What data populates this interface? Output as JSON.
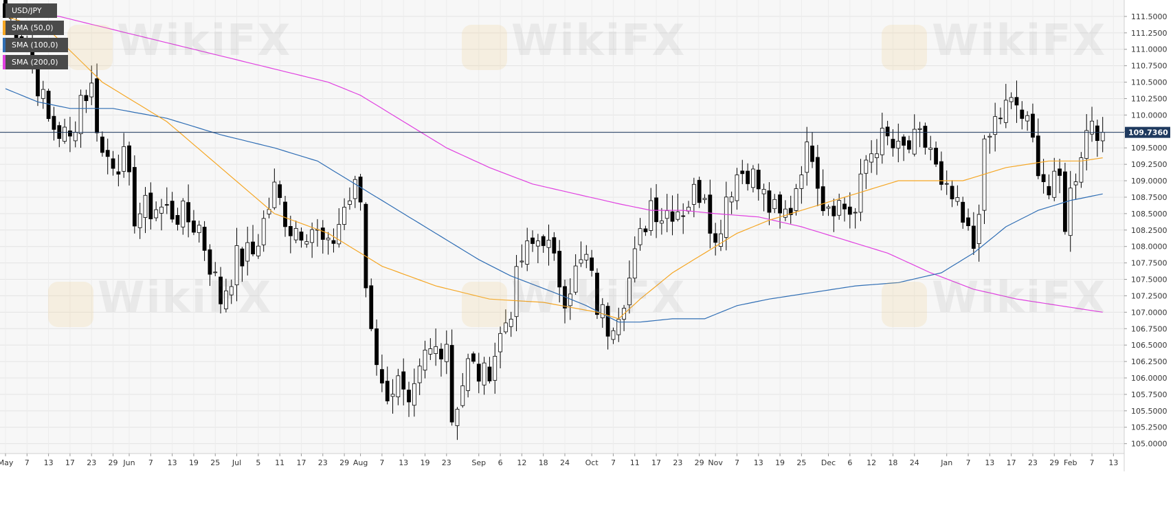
{
  "chart_data": {
    "type": "candlestick",
    "symbol": "USD/JPY",
    "current_price": 109.736,
    "current_price_label": "109.7360",
    "ylim": [
      104.85,
      111.75
    ],
    "y_ticks": [
      "105.0000",
      "105.2500",
      "105.5000",
      "105.7500",
      "106.0000",
      "106.2500",
      "106.5000",
      "106.7500",
      "107.0000",
      "107.2500",
      "107.5000",
      "107.7500",
      "108.0000",
      "108.2500",
      "108.5000",
      "108.7500",
      "109.0000",
      "109.2500",
      "109.5000",
      "109.7500",
      "110.0000",
      "110.2500",
      "110.5000",
      "110.7500",
      "111.0000",
      "111.2500",
      "111.5000"
    ],
    "x_ticks": [
      {
        "i": 0,
        "label": "May"
      },
      {
        "i": 4,
        "label": "7"
      },
      {
        "i": 8,
        "label": "13"
      },
      {
        "i": 12,
        "label": "17"
      },
      {
        "i": 16,
        "label": "23"
      },
      {
        "i": 20,
        "label": "29"
      },
      {
        "i": 23,
        "label": "Jun"
      },
      {
        "i": 27,
        "label": "7"
      },
      {
        "i": 31,
        "label": "13"
      },
      {
        "i": 35,
        "label": "19"
      },
      {
        "i": 39,
        "label": "25"
      },
      {
        "i": 43,
        "label": "Jul"
      },
      {
        "i": 47,
        "label": "5"
      },
      {
        "i": 51,
        "label": "11"
      },
      {
        "i": 55,
        "label": "17"
      },
      {
        "i": 59,
        "label": "23"
      },
      {
        "i": 63,
        "label": "29"
      },
      {
        "i": 66,
        "label": "Aug"
      },
      {
        "i": 70,
        "label": "7"
      },
      {
        "i": 74,
        "label": "13"
      },
      {
        "i": 78,
        "label": "19"
      },
      {
        "i": 82,
        "label": "23"
      },
      {
        "i": 88,
        "label": "Sep"
      },
      {
        "i": 92,
        "label": "6"
      },
      {
        "i": 96,
        "label": "12"
      },
      {
        "i": 100,
        "label": "18"
      },
      {
        "i": 104,
        "label": "24"
      },
      {
        "i": 109,
        "label": "Oct"
      },
      {
        "i": 113,
        "label": "7"
      },
      {
        "i": 117,
        "label": "11"
      },
      {
        "i": 121,
        "label": "17"
      },
      {
        "i": 125,
        "label": "23"
      },
      {
        "i": 129,
        "label": "29"
      },
      {
        "i": 132,
        "label": "Nov"
      },
      {
        "i": 136,
        "label": "7"
      },
      {
        "i": 140,
        "label": "13"
      },
      {
        "i": 144,
        "label": "19"
      },
      {
        "i": 148,
        "label": "25"
      },
      {
        "i": 153,
        "label": "Dec"
      },
      {
        "i": 157,
        "label": "6"
      },
      {
        "i": 161,
        "label": "12"
      },
      {
        "i": 165,
        "label": "18"
      },
      {
        "i": 169,
        "label": "24"
      },
      {
        "i": 175,
        "label": "Jan"
      },
      {
        "i": 179,
        "label": "7"
      },
      {
        "i": 183,
        "label": "13"
      },
      {
        "i": 187,
        "label": "17"
      },
      {
        "i": 191,
        "label": "23"
      },
      {
        "i": 195,
        "label": "29"
      },
      {
        "i": 198,
        "label": "Feb"
      },
      {
        "i": 202,
        "label": "7"
      },
      {
        "i": 206,
        "label": "13"
      }
    ],
    "series_meta": [
      {
        "name": "USD/JPY",
        "color": "#000000"
      },
      {
        "name": "SMA (50,0)",
        "color": "#f5a623"
      },
      {
        "name": "SMA (100,0)",
        "color": "#2e6db4"
      },
      {
        "name": "SMA (200,0)",
        "color": "#e040e0"
      }
    ],
    "candles_close_anchors": [
      [
        0,
        111.55
      ],
      [
        4,
        111.1
      ],
      [
        8,
        109.9
      ],
      [
        12,
        109.6
      ],
      [
        14,
        110.3
      ],
      [
        16,
        110.4
      ],
      [
        18,
        109.4
      ],
      [
        22,
        109.3
      ],
      [
        24,
        108.5
      ],
      [
        28,
        108.6
      ],
      [
        32,
        108.5
      ],
      [
        36,
        108.3
      ],
      [
        40,
        107.2
      ],
      [
        43,
        107.8
      ],
      [
        46,
        107.9
      ],
      [
        50,
        108.85
      ],
      [
        53,
        108.3
      ],
      [
        57,
        108.3
      ],
      [
        60,
        107.9
      ],
      [
        63,
        108.6
      ],
      [
        65,
        108.85
      ],
      [
        66,
        108.7
      ],
      [
        67,
        107.4
      ],
      [
        70,
        105.8
      ],
      [
        73,
        105.9
      ],
      [
        75,
        105.4
      ],
      [
        78,
        106.3
      ],
      [
        82,
        106.6
      ],
      [
        83,
        105.4
      ],
      [
        86,
        106.2
      ],
      [
        89,
        106.0
      ],
      [
        91,
        106.4
      ],
      [
        94,
        107.1
      ],
      [
        96,
        107.8
      ],
      [
        98,
        108.0
      ],
      [
        100,
        108.2
      ],
      [
        102,
        107.7
      ],
      [
        104,
        107.3
      ],
      [
        106,
        107.6
      ],
      [
        108,
        107.8
      ],
      [
        110,
        107.1
      ],
      [
        112,
        106.8
      ],
      [
        114,
        107.1
      ],
      [
        116,
        107.5
      ],
      [
        118,
        108.1
      ],
      [
        120,
        108.7
      ],
      [
        122,
        108.5
      ],
      [
        124,
        108.6
      ],
      [
        126,
        108.6
      ],
      [
        128,
        108.8
      ],
      [
        130,
        108.9
      ],
      [
        132,
        108.0
      ],
      [
        134,
        108.8
      ],
      [
        136,
        109.1
      ],
      [
        138,
        109.2
      ],
      [
        140,
        108.9
      ],
      [
        142,
        108.6
      ],
      [
        144,
        108.4
      ],
      [
        146,
        108.6
      ],
      [
        148,
        109.3
      ],
      [
        150,
        109.5
      ],
      [
        152,
        108.7
      ],
      [
        154,
        108.7
      ],
      [
        156,
        108.6
      ],
      [
        158,
        108.5
      ],
      [
        160,
        109.3
      ],
      [
        162,
        109.6
      ],
      [
        164,
        109.6
      ],
      [
        166,
        109.4
      ],
      [
        168,
        109.5
      ],
      [
        170,
        109.6
      ],
      [
        172,
        109.5
      ],
      [
        174,
        108.8
      ],
      [
        176,
        108.7
      ],
      [
        178,
        108.3
      ],
      [
        180,
        108.0
      ],
      [
        182,
        109.4
      ],
      [
        184,
        109.9
      ],
      [
        186,
        110.1
      ],
      [
        188,
        110.15
      ],
      [
        190,
        109.8
      ],
      [
        192,
        109.3
      ],
      [
        194,
        108.8
      ],
      [
        196,
        109.0
      ],
      [
        197,
        108.4
      ],
      [
        198,
        108.8
      ],
      [
        200,
        109.5
      ],
      [
        202,
        110.0
      ],
      [
        203,
        109.85
      ],
      [
        204,
        109.736
      ]
    ],
    "sma_50": [
      [
        0,
        111.5
      ],
      [
        8,
        111.3
      ],
      [
        18,
        110.5
      ],
      [
        30,
        109.9
      ],
      [
        40,
        109.2
      ],
      [
        50,
        108.5
      ],
      [
        60,
        108.2
      ],
      [
        70,
        107.7
      ],
      [
        80,
        107.4
      ],
      [
        90,
        107.2
      ],
      [
        100,
        107.15
      ],
      [
        110,
        107.0
      ],
      [
        114,
        106.9
      ],
      [
        118,
        107.2
      ],
      [
        124,
        107.6
      ],
      [
        130,
        107.9
      ],
      [
        136,
        108.2
      ],
      [
        142,
        108.4
      ],
      [
        150,
        108.6
      ],
      [
        158,
        108.8
      ],
      [
        166,
        109.0
      ],
      [
        174,
        109.0
      ],
      [
        178,
        109.0
      ],
      [
        186,
        109.2
      ],
      [
        194,
        109.3
      ],
      [
        200,
        109.3
      ],
      [
        204,
        109.35
      ]
    ],
    "sma_100": [
      [
        0,
        110.4
      ],
      [
        6,
        110.2
      ],
      [
        12,
        110.1
      ],
      [
        20,
        110.1
      ],
      [
        30,
        109.95
      ],
      [
        40,
        109.7
      ],
      [
        50,
        109.5
      ],
      [
        58,
        109.3
      ],
      [
        66,
        108.9
      ],
      [
        72,
        108.6
      ],
      [
        80,
        108.2
      ],
      [
        88,
        107.8
      ],
      [
        94,
        107.55
      ],
      [
        102,
        107.3
      ],
      [
        108,
        107.1
      ],
      [
        114,
        106.85
      ],
      [
        118,
        106.85
      ],
      [
        124,
        106.9
      ],
      [
        130,
        106.9
      ],
      [
        136,
        107.1
      ],
      [
        142,
        107.2
      ],
      [
        150,
        107.3
      ],
      [
        158,
        107.4
      ],
      [
        166,
        107.45
      ],
      [
        174,
        107.6
      ],
      [
        180,
        107.9
      ],
      [
        186,
        108.3
      ],
      [
        192,
        108.55
      ],
      [
        198,
        108.7
      ],
      [
        204,
        108.8
      ]
    ],
    "sma_200": [
      [
        0,
        111.6
      ],
      [
        10,
        111.5
      ],
      [
        20,
        111.3
      ],
      [
        30,
        111.1
      ],
      [
        40,
        110.9
      ],
      [
        50,
        110.7
      ],
      [
        60,
        110.5
      ],
      [
        66,
        110.3
      ],
      [
        74,
        109.9
      ],
      [
        82,
        109.5
      ],
      [
        90,
        109.2
      ],
      [
        98,
        108.95
      ],
      [
        106,
        108.8
      ],
      [
        114,
        108.65
      ],
      [
        120,
        108.55
      ],
      [
        126,
        108.55
      ],
      [
        132,
        108.5
      ],
      [
        140,
        108.45
      ],
      [
        148,
        108.3
      ],
      [
        156,
        108.1
      ],
      [
        164,
        107.9
      ],
      [
        172,
        107.6
      ],
      [
        180,
        107.35
      ],
      [
        188,
        107.2
      ],
      [
        196,
        107.1
      ],
      [
        204,
        107.0
      ]
    ]
  },
  "legend": [
    {
      "label": "USD/JPY",
      "color": "#000000"
    },
    {
      "label": "SMA (50,0)",
      "color": "#f5a623"
    },
    {
      "label": "SMA (100,0)",
      "color": "#2e6db4"
    },
    {
      "label": "SMA (200,0)",
      "color": "#e040e0"
    }
  ],
  "watermark": "WikiFX"
}
